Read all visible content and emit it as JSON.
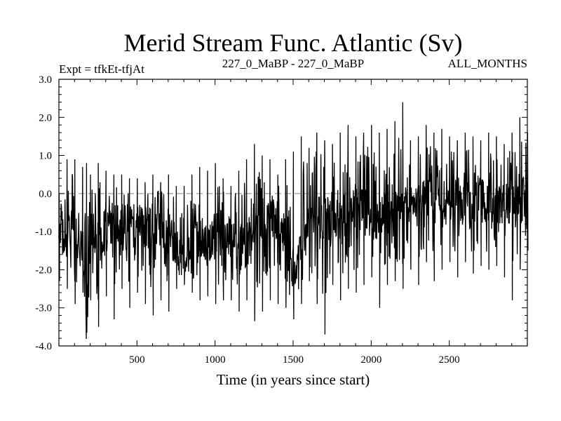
{
  "chart_data": {
    "type": "line",
    "title": "Merid Stream Func. Atlantic (Sv)",
    "subtitle_left": "Expt = tfkEt-tfjAt",
    "subtitle_center": "227_0_MaBP - 227_0_MaBP",
    "subtitle_right": "ALL_MONTHS",
    "xlabel": "Time (in years since start)",
    "ylabel": "",
    "xlim": [
      0,
      3000
    ],
    "ylim": [
      -4.0,
      3.0
    ],
    "x_ticks": [
      500,
      1000,
      1500,
      2000,
      2500
    ],
    "x_tick_labels": [
      "500",
      "1000",
      "1500",
      "2000",
      "2500"
    ],
    "y_ticks": [
      3.0,
      2.0,
      1.0,
      0.0,
      -1.0,
      -2.0,
      -3.0,
      -4.0
    ],
    "y_tick_labels": [
      "3.0",
      "2.0",
      "1.0",
      "0.0",
      "-1.0",
      "-2.0",
      "-3.0",
      "-4.0"
    ],
    "reference_line": {
      "y": 0.0,
      "style": "dashed",
      "color": "#808080"
    },
    "series": [
      {
        "color": "#000000",
        "x": [
          0,
          50,
          100,
          150,
          175,
          200,
          250,
          300,
          350,
          400,
          450,
          500,
          550,
          600,
          650,
          700,
          750,
          800,
          850,
          900,
          950,
          1000,
          1050,
          1100,
          1150,
          1200,
          1250,
          1300,
          1350,
          1400,
          1450,
          1500,
          1550,
          1600,
          1650,
          1700,
          1750,
          1800,
          1850,
          1900,
          1950,
          2000,
          2050,
          2100,
          2150,
          2200,
          2250,
          2300,
          2350,
          2400,
          2450,
          2500,
          2550,
          2600,
          2650,
          2700,
          2750,
          2800,
          2850,
          2900,
          2950,
          3000
        ],
        "values": [
          -1.2,
          -1.1,
          -1.0,
          -1.1,
          -3.65,
          -1.2,
          -0.9,
          -1.0,
          -0.7,
          -0.8,
          -1.0,
          -0.8,
          -0.9,
          -0.7,
          -0.8,
          -1.0,
          -1.5,
          -1.6,
          -1.4,
          -1.2,
          -1.3,
          -1.1,
          -1.0,
          -1.2,
          -1.3,
          -1.4,
          -1.0,
          -1.1,
          -0.6,
          -0.8,
          -1.4,
          -2.0,
          -1.5,
          -0.9,
          -0.6,
          -0.7,
          -0.5,
          -0.6,
          -0.6,
          -0.3,
          -0.5,
          -0.4,
          -0.6,
          -0.4,
          -0.3,
          -0.2,
          -0.4,
          -0.3,
          -0.2,
          -0.3,
          -0.4,
          -0.2,
          -0.3,
          -0.2,
          -0.3,
          -0.1,
          -0.2,
          -0.4,
          -0.3,
          -0.2,
          -0.3,
          0.1
        ],
        "upper_envelope": [
          0.0,
          0.9,
          0.9,
          0.7,
          0.8,
          0.5,
          0.8,
          0.6,
          0.5,
          0.5,
          0.4,
          0.4,
          0.3,
          0.5,
          0.3,
          0.5,
          0.2,
          0.2,
          0.5,
          0.7,
          0.6,
          0.8,
          0.4,
          0.2,
          0.6,
          0.9,
          1.3,
          1.0,
          0.9,
          0.5,
          0.9,
          1.1,
          1.5,
          1.2,
          1.6,
          1.4,
          1.3,
          1.6,
          1.8,
          1.5,
          1.6,
          1.8,
          1.6,
          1.7,
          1.9,
          2.4,
          1.4,
          1.5,
          1.8,
          1.6,
          1.7,
          1.5,
          1.4,
          1.6,
          1.5,
          1.4,
          1.6,
          1.5,
          1.3,
          1.6,
          2.0,
          1.6
        ],
        "lower_envelope": [
          -2.3,
          -2.5,
          -2.9,
          -2.6,
          -3.65,
          -2.8,
          -3.5,
          -2.7,
          -3.3,
          -2.5,
          -3.0,
          -2.6,
          -2.9,
          -3.2,
          -2.8,
          -3.1,
          -2.5,
          -2.4,
          -2.6,
          -2.8,
          -2.7,
          -2.9,
          -2.8,
          -2.8,
          -3.1,
          -2.8,
          -3.35,
          -3.1,
          -2.8,
          -2.9,
          -3.0,
          -3.3,
          -2.9,
          -2.3,
          -2.9,
          -3.7,
          -2.4,
          -2.8,
          -2.5,
          -2.6,
          -2.4,
          -2.2,
          -3.0,
          -2.4,
          -2.3,
          -2.5,
          -2.0,
          -2.4,
          -1.8,
          -2.3,
          -2.0,
          -1.8,
          -2.2,
          -1.8,
          -2.1,
          -1.9,
          -2.0,
          -1.9,
          -2.2,
          -2.8,
          -2.0,
          -1.5
        ]
      }
    ]
  }
}
